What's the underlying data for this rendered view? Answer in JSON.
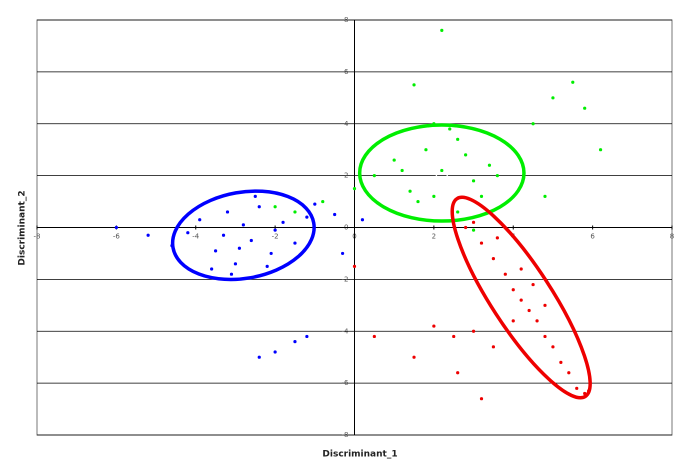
{
  "chart_data": {
    "type": "scatter",
    "x_label": "Discriminant_1",
    "y_label": "Discriminant_2",
    "xlim": [
      -8,
      8
    ],
    "ylim": [
      -8,
      8
    ],
    "xticks": [
      -8,
      -6,
      -4,
      -2,
      0,
      2,
      4,
      6,
      8
    ],
    "yticks": [
      -8,
      -6,
      -4,
      -2,
      0,
      2,
      4,
      6,
      8
    ],
    "grid": true,
    "series": [
      {
        "color": "#0000ff",
        "x": [
          -4.2,
          -3.9,
          -3.5,
          -3.2,
          -3.0,
          -2.8,
          -2.6,
          -2.4,
          -2.1,
          -1.8,
          -1.5,
          -1.2,
          -3.6,
          -3.1,
          -2.5,
          -2.2,
          -3.3,
          -2.9,
          -2.0,
          -4.6,
          -5.2,
          -6.0,
          -1.0,
          -0.5,
          0.2,
          -1.5,
          -2.0,
          -1.2,
          -2.4,
          -0.3
        ],
        "values": [
          -0.2,
          0.3,
          -0.9,
          0.6,
          -1.4,
          0.1,
          -0.5,
          0.8,
          -1.0,
          0.2,
          -0.6,
          0.4,
          -1.6,
          -1.8,
          1.2,
          -1.5,
          -0.3,
          -0.8,
          -0.1,
          -0.7,
          -0.3,
          0.0,
          0.9,
          0.5,
          0.3,
          -4.4,
          -4.8,
          -4.2,
          -5.0,
          -1.0
        ],
        "ellipse": {
          "center": [
            -2.8,
            -0.3
          ],
          "rx": 1.8,
          "ry": 1.66,
          "angle": -10
        }
      },
      {
        "color": "#00ee00",
        "x": [
          0.5,
          1.0,
          1.4,
          1.8,
          2.2,
          2.6,
          3.0,
          3.4,
          1.6,
          2.0,
          2.4,
          2.8,
          3.2,
          1.2,
          2.0,
          2.6,
          3.6,
          -0.8,
          -1.5,
          -2.0,
          0.0,
          4.5,
          5.0,
          5.5,
          5.8,
          6.2,
          4.8,
          2.2,
          1.5,
          3.0
        ],
        "values": [
          2.0,
          2.6,
          1.4,
          3.0,
          2.2,
          3.4,
          1.8,
          2.4,
          1.0,
          1.2,
          3.8,
          2.8,
          1.2,
          2.2,
          4.0,
          0.6,
          2.0,
          1.0,
          0.6,
          0.8,
          1.5,
          4.0,
          5.0,
          5.6,
          4.6,
          3.0,
          1.2,
          7.6,
          5.5,
          -0.1
        ],
        "ellipse": {
          "center": [
            2.2,
            2.1
          ],
          "rx": 2.07,
          "ry": 1.85,
          "angle": 0
        }
      },
      {
        "color": "#ee0000",
        "x": [
          2.8,
          3.2,
          3.5,
          3.8,
          4.0,
          4.2,
          4.4,
          4.6,
          4.8,
          5.0,
          5.2,
          5.4,
          5.6,
          5.8,
          3.0,
          3.6,
          4.2,
          4.8,
          2.0,
          2.5,
          3.0,
          3.5,
          4.0,
          1.5,
          0.5,
          0.0,
          2.6,
          3.2,
          5.9,
          4.5
        ],
        "values": [
          0.0,
          -0.6,
          -1.2,
          -1.8,
          -2.4,
          -2.8,
          -3.2,
          -3.6,
          -4.2,
          -4.6,
          -5.2,
          -5.6,
          -6.2,
          -6.4,
          0.2,
          -0.4,
          -1.6,
          -3.0,
          -3.8,
          -4.2,
          -4.0,
          -4.6,
          -3.6,
          -5.0,
          -4.2,
          -1.5,
          -5.6,
          -6.6,
          -6.3,
          -2.2
        ],
        "ellipse": {
          "center": [
            4.2,
            -2.7
          ],
          "rx": 2.97,
          "ry": 1.16,
          "angle": 57
        }
      }
    ]
  }
}
